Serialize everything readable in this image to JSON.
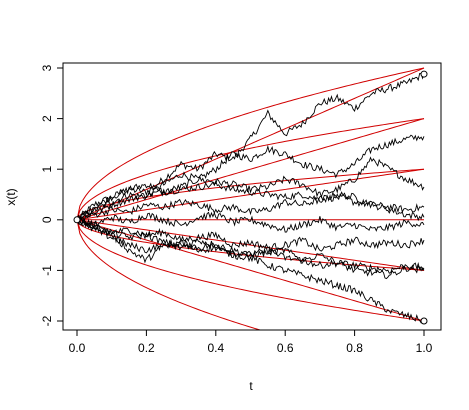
{
  "chart_data": {
    "type": "line",
    "title": "",
    "xlabel": "t",
    "ylabel": "x(t)",
    "xlim": [
      0,
      1
    ],
    "ylim": [
      -2.1,
      3.0
    ],
    "x_ticks": [
      0.0,
      0.2,
      0.4,
      0.6,
      0.8,
      1.0
    ],
    "x_tick_labels": [
      "0.0",
      "0.2",
      "0.4",
      "0.6",
      "0.8",
      "1.0"
    ],
    "y_ticks": [
      -2,
      -1,
      0,
      1,
      2,
      3
    ],
    "y_tick_labels": [
      "-2",
      "-1",
      "0",
      "1",
      "2",
      "3"
    ],
    "grid": false,
    "legend": "none",
    "colors": {
      "paths": "#000000",
      "boundaries": "#d10000",
      "frame": "#000000"
    },
    "boundary_curves": [
      {
        "formula": "k*sqrt(t)",
        "k": 1
      },
      {
        "formula": "k*sqrt(t)",
        "k": 2
      },
      {
        "formula": "k*sqrt(t)",
        "k": 3
      },
      {
        "formula": "k*sqrt(t)",
        "k": -1
      },
      {
        "formula": "k*sqrt(t)",
        "k": -2
      },
      {
        "formula": "k*sqrt(t)",
        "k": -3
      },
      {
        "formula": "linear",
        "k": 0
      },
      {
        "formula": "linear",
        "k": 1
      },
      {
        "formula": "linear",
        "k": 2
      },
      {
        "formula": "linear",
        "k": 3
      },
      {
        "formula": "linear",
        "k": -1
      },
      {
        "formula": "linear",
        "k": -2
      }
    ],
    "series": [
      {
        "x": [
          0,
          0.05,
          0.1,
          0.15,
          0.2,
          0.25,
          0.3,
          0.35,
          0.4,
          0.45,
          0.5,
          0.55,
          0.6,
          0.65,
          0.7,
          0.75,
          0.8,
          0.85,
          0.9,
          0.95,
          1.0
        ],
        "y": [
          0,
          0.3,
          0.45,
          0.6,
          0.55,
          0.8,
          1.1,
          1.0,
          1.3,
          1.2,
          1.6,
          2.1,
          1.7,
          1.9,
          2.3,
          2.4,
          2.2,
          2.5,
          2.6,
          2.7,
          2.88
        ]
      },
      {
        "x": [
          0,
          0.05,
          0.1,
          0.15,
          0.2,
          0.25,
          0.3,
          0.35,
          0.4,
          0.45,
          0.5,
          0.55,
          0.6,
          0.65,
          0.7,
          0.75,
          0.8,
          0.85,
          0.9,
          0.95,
          1.0
        ],
        "y": [
          0,
          0.2,
          0.35,
          0.5,
          0.45,
          0.7,
          0.9,
          0.8,
          1.0,
          1.3,
          1.2,
          1.4,
          1.3,
          1.1,
          1.0,
          0.9,
          1.1,
          1.4,
          1.5,
          1.6,
          1.65
        ]
      },
      {
        "x": [
          0,
          0.05,
          0.1,
          0.15,
          0.2,
          0.25,
          0.3,
          0.35,
          0.4,
          0.45,
          0.5,
          0.55,
          0.6,
          0.65,
          0.7,
          0.75,
          0.8,
          0.85,
          0.9,
          0.95,
          1.0
        ],
        "y": [
          0,
          0.25,
          0.45,
          0.6,
          0.7,
          0.55,
          0.65,
          0.8,
          0.75,
          0.7,
          0.6,
          0.65,
          0.8,
          0.7,
          0.5,
          0.6,
          0.8,
          1.2,
          1.0,
          0.8,
          0.65
        ]
      },
      {
        "x": [
          0,
          0.05,
          0.1,
          0.15,
          0.2,
          0.25,
          0.3,
          0.35,
          0.4,
          0.45,
          0.5,
          0.55,
          0.6,
          0.65,
          0.7,
          0.75,
          0.8,
          0.85,
          0.9,
          0.95,
          1.0
        ],
        "y": [
          0,
          0.15,
          0.3,
          0.4,
          0.5,
          0.55,
          0.6,
          0.65,
          0.7,
          0.6,
          0.55,
          0.5,
          0.45,
          0.5,
          0.4,
          0.45,
          0.35,
          0.3,
          0.25,
          0.2,
          0.25
        ]
      },
      {
        "x": [
          0,
          0.05,
          0.1,
          0.15,
          0.2,
          0.25,
          0.3,
          0.35,
          0.4,
          0.45,
          0.5,
          0.55,
          0.6,
          0.65,
          0.7,
          0.75,
          0.8,
          0.85,
          0.9,
          0.95,
          1.0
        ],
        "y": [
          0,
          0.1,
          0.2,
          0.15,
          0.3,
          0.25,
          0.35,
          0.3,
          0.2,
          0.25,
          0.15,
          0.2,
          0.35,
          0.3,
          0.4,
          0.5,
          0.45,
          0.3,
          0.2,
          0.1,
          0.05
        ]
      },
      {
        "x": [
          0,
          0.05,
          0.1,
          0.15,
          0.2,
          0.25,
          0.3,
          0.35,
          0.4,
          0.45,
          0.5,
          0.55,
          0.6,
          0.65,
          0.7,
          0.75,
          0.8,
          0.85,
          0.9,
          0.95,
          1.0
        ],
        "y": [
          0,
          -0.1,
          0.05,
          -0.05,
          0.1,
          0.0,
          -0.1,
          0.05,
          0.1,
          -0.05,
          0.0,
          -0.1,
          -0.2,
          -0.1,
          0.0,
          -0.15,
          -0.1,
          -0.2,
          -0.15,
          -0.05,
          -0.1
        ]
      },
      {
        "x": [
          0,
          0.05,
          0.1,
          0.15,
          0.2,
          0.25,
          0.3,
          0.35,
          0.4,
          0.45,
          0.5,
          0.55,
          0.6,
          0.65,
          0.7,
          0.75,
          0.8,
          0.85,
          0.9,
          0.95,
          1.0
        ],
        "y": [
          0,
          -0.15,
          -0.25,
          -0.2,
          -0.3,
          -0.25,
          -0.4,
          -0.35,
          -0.3,
          -0.5,
          -0.45,
          -0.55,
          -0.5,
          -0.4,
          -0.6,
          -0.5,
          -0.4,
          -0.5,
          -0.45,
          -0.5,
          -0.4
        ]
      },
      {
        "x": [
          0,
          0.05,
          0.1,
          0.15,
          0.2,
          0.25,
          0.3,
          0.35,
          0.4,
          0.45,
          0.5,
          0.55,
          0.6,
          0.65,
          0.7,
          0.75,
          0.8,
          0.85,
          0.9,
          0.95,
          1.0
        ],
        "y": [
          0,
          -0.2,
          -0.35,
          -0.5,
          -0.6,
          -0.5,
          -0.45,
          -0.55,
          -0.5,
          -0.65,
          -0.7,
          -0.6,
          -0.75,
          -0.8,
          -0.7,
          -0.85,
          -0.9,
          -0.95,
          -1.0,
          -0.9,
          -0.95
        ]
      },
      {
        "x": [
          0,
          0.05,
          0.1,
          0.15,
          0.2,
          0.25,
          0.3,
          0.35,
          0.4,
          0.45,
          0.5,
          0.55,
          0.6,
          0.65,
          0.7,
          0.75,
          0.8,
          0.85,
          0.9,
          0.95,
          1.0
        ],
        "y": [
          0,
          -0.1,
          -0.3,
          -0.6,
          -0.8,
          -0.5,
          -0.55,
          -0.4,
          -0.5,
          -0.6,
          -0.7,
          -0.65,
          -0.6,
          -0.8,
          -0.9,
          -0.85,
          -1.0,
          -1.05,
          -1.1,
          -0.95,
          -1.0
        ]
      },
      {
        "x": [
          0,
          0.05,
          0.1,
          0.15,
          0.2,
          0.25,
          0.3,
          0.35,
          0.4,
          0.45,
          0.5,
          0.55,
          0.6,
          0.65,
          0.7,
          0.75,
          0.8,
          0.85,
          0.9,
          0.95,
          1.0
        ],
        "y": [
          0,
          -0.15,
          -0.25,
          -0.35,
          -0.3,
          -0.45,
          -0.5,
          -0.6,
          -0.55,
          -0.7,
          -0.75,
          -0.9,
          -1.0,
          -1.1,
          -1.2,
          -1.3,
          -1.4,
          -1.6,
          -1.8,
          -1.9,
          -2.0
        ]
      }
    ],
    "markers": [
      {
        "x": 1.0,
        "y": 2.88
      },
      {
        "x": 1.0,
        "y": -2.0
      }
    ]
  }
}
